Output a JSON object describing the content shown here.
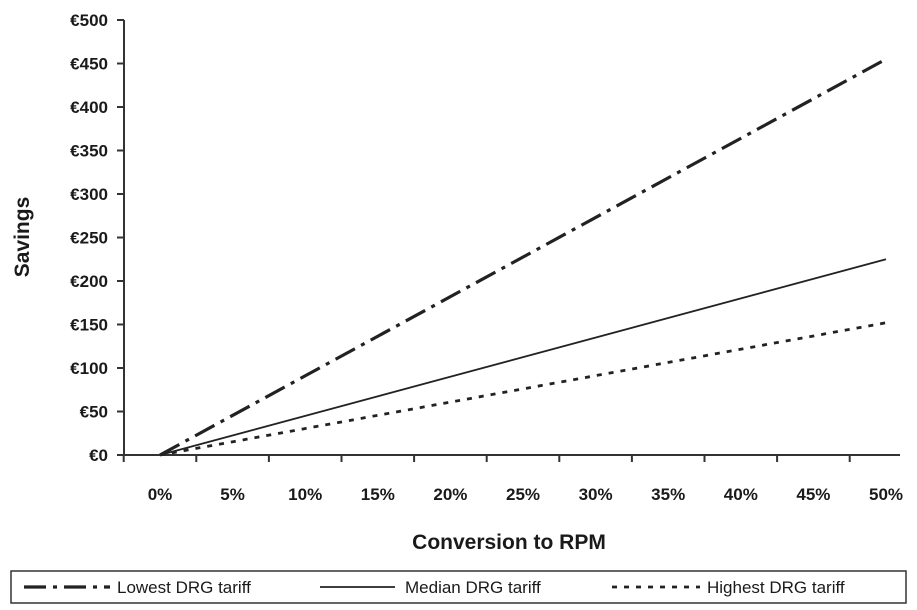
{
  "chart_data": {
    "type": "line",
    "xlabel": "Conversion to RPM",
    "ylabel": "Savings",
    "x_tick_labels": [
      "0%",
      "5%",
      "10%",
      "15%",
      "20%",
      "25%",
      "30%",
      "35%",
      "40%",
      "45%",
      "50%"
    ],
    "y_tick_labels": [
      "€0",
      "€50",
      "€100",
      "€150",
      "€200",
      "€250",
      "€300",
      "€350",
      "€400",
      "€450",
      "€500"
    ],
    "xlim": [
      0,
      50
    ],
    "ylim": [
      0,
      500
    ],
    "legend_position": "bottom",
    "series": [
      {
        "name": "Lowest DRG tariff",
        "style": "dash-dot",
        "color": "#222222",
        "x": [
          0,
          50
        ],
        "y": [
          0,
          455
        ]
      },
      {
        "name": "Median DRG tariff",
        "style": "solid",
        "color": "#222222",
        "x": [
          0,
          50
        ],
        "y": [
          0,
          225
        ]
      },
      {
        "name": "Highest DRG tariff",
        "style": "dotted",
        "color": "#222222",
        "x": [
          0,
          50
        ],
        "y": [
          0,
          152
        ]
      }
    ]
  }
}
